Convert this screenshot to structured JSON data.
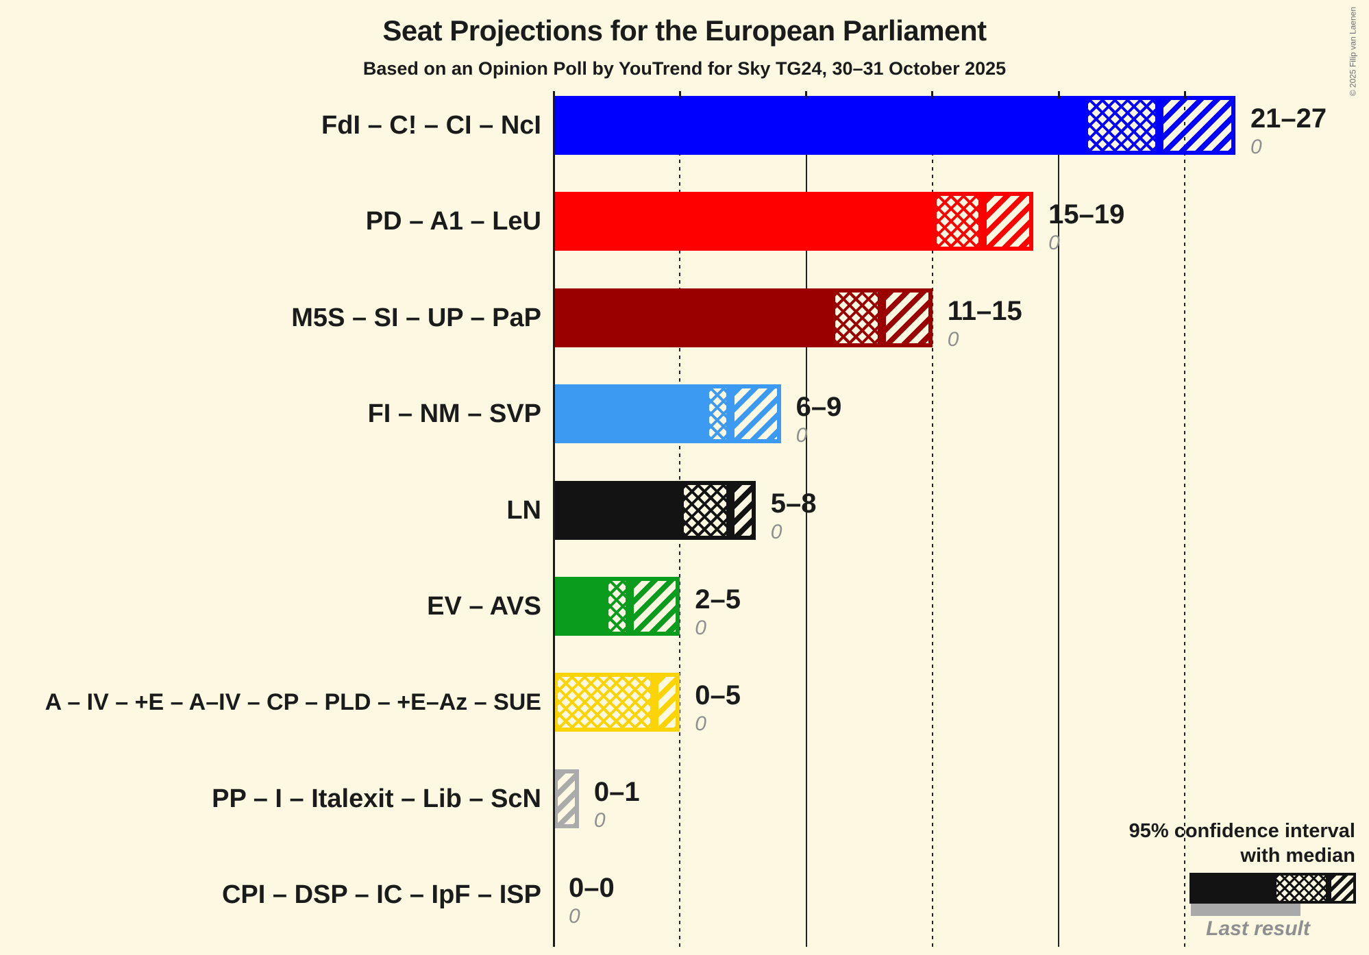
{
  "copyright": "© 2025 Filip van Laenen",
  "legend": {
    "ci_line1": "95% confidence interval",
    "ci_line2": "with median",
    "last_result": "Last result"
  },
  "chart_data": {
    "type": "bar",
    "orientation": "horizontal",
    "unit": "seats",
    "title": "Seat Projections for the European Parliament",
    "subtitle": "Based on an Opinion Poll by YouTrend for Sky TG24, 30–31 October 2025",
    "x_axis": {
      "min": 0,
      "max": 27,
      "gridlines": [
        5,
        10,
        15,
        20,
        25
      ],
      "solid_gridlines": [
        10,
        20
      ],
      "dotted_gridlines": [
        5,
        15,
        25
      ]
    },
    "parties": [
      {
        "label": "FdI – C! – CI – NcI",
        "color": "#0000FF",
        "ci_low": 21,
        "median": 24,
        "ci_high": 27,
        "range_label": "21–27",
        "last_result": "0"
      },
      {
        "label": "PD – A1 – LeU",
        "color": "#FF0000",
        "ci_low": 15,
        "median": 17,
        "ci_high": 19,
        "range_label": "15–19",
        "last_result": "0"
      },
      {
        "label": "M5S – SI – UP – PaP",
        "color": "#9A0000",
        "ci_low": 11,
        "median": 13,
        "ci_high": 15,
        "range_label": "11–15",
        "last_result": "0"
      },
      {
        "label": "FI – NM – SVP",
        "color": "#3D9AF2",
        "ci_low": 6,
        "median": 7,
        "ci_high": 9,
        "range_label": "6–9",
        "last_result": "0"
      },
      {
        "label": "LN",
        "color": "#131313",
        "ci_low": 5,
        "median": 7,
        "ci_high": 8,
        "range_label": "5–8",
        "last_result": "0"
      },
      {
        "label": "EV – AVS",
        "color": "#0A9C1D",
        "ci_low": 2,
        "median": 3,
        "ci_high": 5,
        "range_label": "2–5",
        "last_result": "0"
      },
      {
        "label": "A – IV – +E – A–IV – CP – PLD – +E–Az – SUE",
        "color": "#FCD303",
        "ci_low": 0,
        "median": 4,
        "ci_high": 5,
        "range_label": "0–5",
        "last_result": "0"
      },
      {
        "label": "PP – I – Italexit – Lib – ScN",
        "color": "#ABABAB",
        "ci_low": 0,
        "median": 0,
        "ci_high": 1,
        "range_label": "0–1",
        "last_result": "0"
      },
      {
        "label": "CPI – DSP – IC – IpF – ISP",
        "color": "#131313",
        "ci_low": 0,
        "median": 0,
        "ci_high": 0,
        "range_label": "0–0",
        "last_result": "0"
      }
    ]
  }
}
